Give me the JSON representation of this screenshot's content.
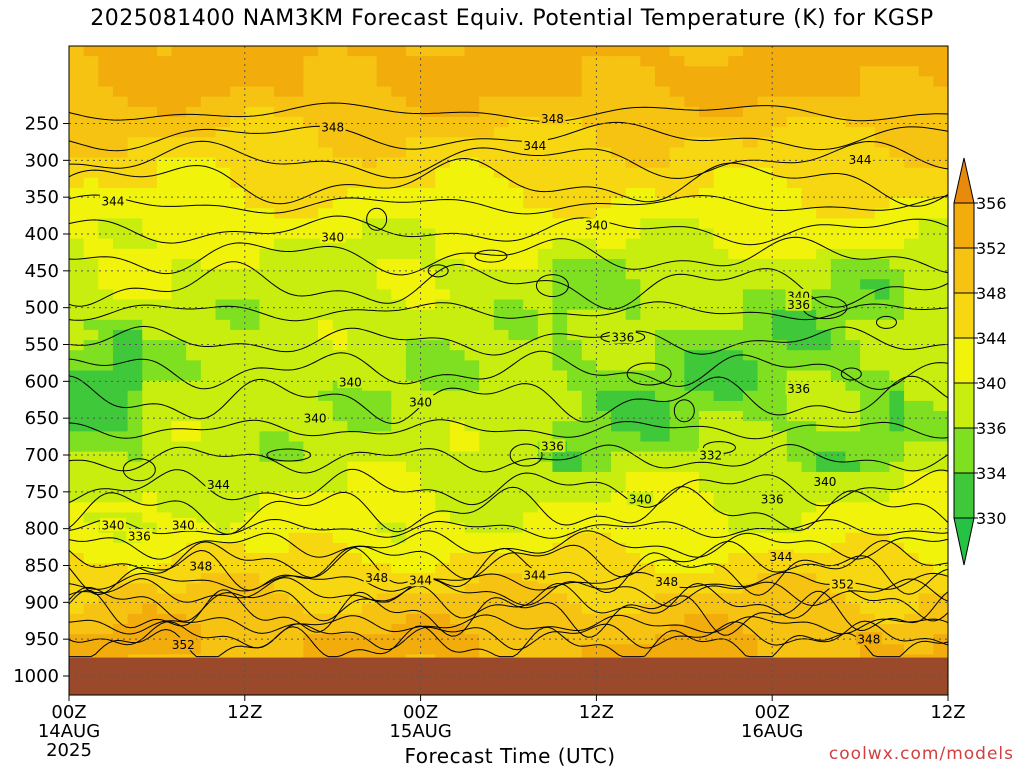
{
  "title": "2025081400 NAM3KM Forecast Equiv. Potential Temperature (K) for KGSP",
  "credit": "coolwx.com/models",
  "colors": {
    "c330": "#3fc83a",
    "c334": "#7ee020",
    "c336": "#c8ee10",
    "c340": "#f1f40a",
    "c344": "#f7d711",
    "c348": "#f6c312",
    "c352": "#f2ad0c",
    "c356": "#e98a0c",
    "ground": "#9a4a2a"
  },
  "chart_data": {
    "type": "heatmap",
    "title": "2025081400 NAM3KM Forecast Equiv. Potential Temperature (K) for KGSP",
    "xlabel": "Forecast Time (UTC)",
    "ylabel": "",
    "x_ticks": [
      {
        "label": "00Z",
        "sub": "14AUG",
        "sub2": "2025"
      },
      {
        "label": "12Z",
        "sub": "",
        "sub2": ""
      },
      {
        "label": "00Z",
        "sub": "15AUG",
        "sub2": ""
      },
      {
        "label": "12Z",
        "sub": "",
        "sub2": ""
      },
      {
        "label": "00Z",
        "sub": "16AUG",
        "sub2": ""
      },
      {
        "label": "12Z",
        "sub": "",
        "sub2": ""
      }
    ],
    "y_ticks": [
      250,
      300,
      350,
      400,
      450,
      500,
      550,
      600,
      650,
      700,
      750,
      800,
      850,
      900,
      950,
      1000
    ],
    "ylim": [
      1000,
      200
    ],
    "colorbar": {
      "levels": [
        330,
        334,
        336,
        340,
        344,
        348,
        352,
        356
      ],
      "labels": [
        "330",
        "334",
        "336",
        "340",
        "344",
        "348",
        "352",
        "356"
      ]
    },
    "layers": [
      {
        "pressure": 200,
        "theta_e": 353
      },
      {
        "pressure": 250,
        "theta_e": 349
      },
      {
        "pressure": 300,
        "theta_e": 346
      },
      {
        "pressure": 350,
        "theta_e": 344
      },
      {
        "pressure": 400,
        "theta_e": 341
      },
      {
        "pressure": 450,
        "theta_e": 339
      },
      {
        "pressure": 500,
        "theta_e": 338
      },
      {
        "pressure": 600,
        "theta_e": 337
      },
      {
        "pressure": 700,
        "theta_e": 338
      },
      {
        "pressure": 800,
        "theta_e": 341
      },
      {
        "pressure": 850,
        "theta_e": 345
      },
      {
        "pressure": 900,
        "theta_e": 349
      },
      {
        "pressure": 950,
        "theta_e": 352
      }
    ],
    "contour_labels": [
      {
        "text": "348",
        "t": 0.55,
        "p": 243
      },
      {
        "text": "348",
        "t": 0.3,
        "p": 255
      },
      {
        "text": "344",
        "t": 0.53,
        "p": 280
      },
      {
        "text": "344",
        "t": 0.9,
        "p": 299
      },
      {
        "text": "344",
        "t": 0.05,
        "p": 355
      },
      {
        "text": "340",
        "t": 0.6,
        "p": 388
      },
      {
        "text": "340",
        "t": 0.3,
        "p": 404
      },
      {
        "text": "340",
        "t": 0.83,
        "p": 484
      },
      {
        "text": "336",
        "t": 0.83,
        "p": 496
      },
      {
        "text": "336",
        "t": 0.63,
        "p": 540
      },
      {
        "text": "340",
        "t": 0.32,
        "p": 601
      },
      {
        "text": "336",
        "t": 0.83,
        "p": 610
      },
      {
        "text": "340",
        "t": 0.4,
        "p": 628
      },
      {
        "text": "340",
        "t": 0.28,
        "p": 650
      },
      {
        "text": "336",
        "t": 0.55,
        "p": 688
      },
      {
        "text": "332",
        "t": 0.73,
        "p": 700
      },
      {
        "text": "344",
        "t": 0.17,
        "p": 740
      },
      {
        "text": "340",
        "t": 0.86,
        "p": 736
      },
      {
        "text": "340",
        "t": 0.65,
        "p": 760
      },
      {
        "text": "336",
        "t": 0.8,
        "p": 760
      },
      {
        "text": "340",
        "t": 0.05,
        "p": 795
      },
      {
        "text": "336",
        "t": 0.08,
        "p": 810
      },
      {
        "text": "340",
        "t": 0.13,
        "p": 795
      },
      {
        "text": "348",
        "t": 0.15,
        "p": 851
      },
      {
        "text": "344",
        "t": 0.81,
        "p": 838
      },
      {
        "text": "348",
        "t": 0.35,
        "p": 866
      },
      {
        "text": "344",
        "t": 0.4,
        "p": 870
      },
      {
        "text": "344",
        "t": 0.53,
        "p": 863
      },
      {
        "text": "348",
        "t": 0.68,
        "p": 872
      },
      {
        "text": "352",
        "t": 0.88,
        "p": 875
      },
      {
        "text": "352",
        "t": 0.13,
        "p": 957
      },
      {
        "text": "348",
        "t": 0.91,
        "p": 950
      }
    ]
  }
}
